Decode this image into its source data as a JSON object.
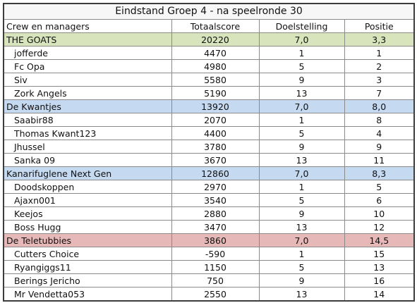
{
  "title": "Eindstand Groep 4 - na speelronde 30",
  "columns": [
    "Crew en managers",
    "Totaalscore",
    "Doelstelling",
    "Positie"
  ],
  "groups": [
    {
      "name": "THE GOATS",
      "score": "20220",
      "goal": "7,0",
      "pos": "3,3",
      "color": "#d8e4bc",
      "members": [
        {
          "name": "jofferde",
          "score": "4470",
          "goal": "1",
          "pos": "1"
        },
        {
          "name": "Fc Opa",
          "score": "4980",
          "goal": "5",
          "pos": "2"
        },
        {
          "name": "Siv",
          "score": "5580",
          "goal": "9",
          "pos": "3"
        },
        {
          "name": "Zork Angels",
          "score": "5190",
          "goal": "13",
          "pos": "7"
        }
      ]
    },
    {
      "name": "De Kwantjes",
      "score": "13920",
      "goal": "7,0",
      "pos": "8,0",
      "color": "#c5d9f1",
      "members": [
        {
          "name": "Saabir88",
          "score": "2070",
          "goal": "1",
          "pos": "8"
        },
        {
          "name": "Thomas Kwant123",
          "score": "4400",
          "goal": "5",
          "pos": "4"
        },
        {
          "name": "Jhussel",
          "score": "3780",
          "goal": "9",
          "pos": "9"
        },
        {
          "name": "Sanka 09",
          "score": "3670",
          "goal": "13",
          "pos": "11"
        }
      ]
    },
    {
      "name": "Kanarifuglene Next Gen",
      "score": "12860",
      "goal": "7,0",
      "pos": "8,3",
      "color": "#c5d9f1",
      "members": [
        {
          "name": "Doodskoppen",
          "score": "2970",
          "goal": "1",
          "pos": "5"
        },
        {
          "name": "Ajaxn001",
          "score": "3540",
          "goal": "5",
          "pos": "6"
        },
        {
          "name": "Keejos",
          "score": "2880",
          "goal": "9",
          "pos": "10"
        },
        {
          "name": "Boss Hugg",
          "score": "3470",
          "goal": "13",
          "pos": "12"
        }
      ]
    },
    {
      "name": "De Teletubbies",
      "score": "3860",
      "goal": "7,0",
      "pos": "14,5",
      "color": "#e6b9b8",
      "members": [
        {
          "name": "Cutters Choice",
          "score": "-590",
          "goal": "1",
          "pos": "15"
        },
        {
          "name": "Ryangiggs11",
          "score": "1150",
          "goal": "5",
          "pos": "13"
        },
        {
          "name": "Berings Jericho",
          "score": "750",
          "goal": "9",
          "pos": "16"
        },
        {
          "name": "Mr Vendetta053",
          "score": "2550",
          "goal": "13",
          "pos": "14"
        }
      ]
    }
  ]
}
